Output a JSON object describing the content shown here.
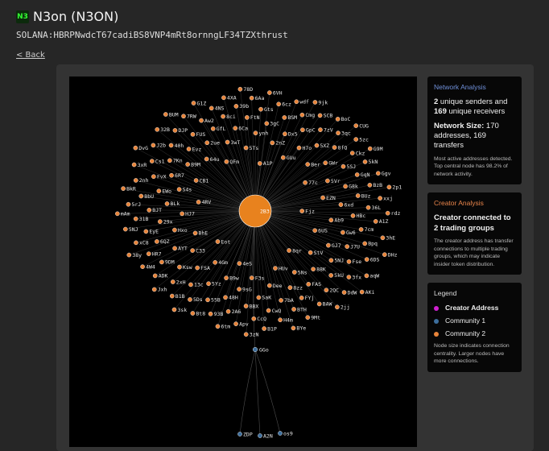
{
  "header": {
    "logo_text": "N3",
    "title": "N3on (N3ON)",
    "address": "SOLANA:HBRPNwdcT67cadiBS8VNP4mRt8ornngLF34TZXthrust",
    "back_label": "< Back"
  },
  "network_analysis": {
    "heading": "Network Analysis",
    "senders": "2",
    "senders_text": " unique senders and ",
    "receivers": "169",
    "receivers_text": " unique receivers",
    "size_label": "Network Size:",
    "size_text": " 170 addresses, 169 transfers",
    "note": "Most active addresses detected. Top central node has 98.2% of network activity."
  },
  "creator_analysis": {
    "heading": "Creator Analysis",
    "headline": "Creator connected to 2 trading groups",
    "note": "The creator address has transfer connections to multiple trading groups, which may indicate insider token distribution."
  },
  "legend": {
    "heading": "Legend",
    "items": [
      {
        "label": "Creator Address",
        "color": "#d020d0"
      },
      {
        "label": "Community 1",
        "color": "#3d6f9e"
      },
      {
        "label": "Community 2",
        "color": "#e8843a"
      }
    ],
    "note": "Node size indicates connection centrality. Larger nodes have more connections."
  },
  "colors": {
    "accent_network": "#6f8fd8",
    "accent_creator": "#e8844a",
    "community2": "#e8843a",
    "community1": "#3d6f9e"
  },
  "graph": {
    "center_label": "2B3",
    "community2_nodes": [
      "Fjz",
      "Eot",
      "A1P",
      "8qr",
      "4RV",
      "77c",
      "4eS",
      "QFm",
      "6US",
      "BhE",
      "GUu",
      "HUv",
      "CB1",
      "EZN",
      "4Gm",
      "5Ts",
      "StV",
      "HJ7",
      "Ber",
      "F3s",
      "64u",
      "Ab9",
      "C33",
      "2nZ",
      "5Ns",
      "S4s",
      "5Vr",
      "B9w",
      "3wT",
      "GJ7",
      "Hxo",
      "H7o",
      "Dee",
      "B9M",
      "6xd",
      "FSA",
      "ynh",
      "88K",
      "BLk",
      "GWr",
      "9sG",
      "2ue",
      "Gw6",
      "AYT",
      "Dx5",
      "8zz",
      "6R7",
      "G8k",
      "5Yz",
      "6Ca",
      "5NJ",
      "29x",
      "5XZ",
      "SaK",
      "Evz",
      "HBc",
      "Ksw",
      "3gC",
      "FAS",
      "EWo",
      "5SJ",
      "48H",
      "GfL",
      "J7U",
      "6QZ",
      "GpC",
      "7bA",
      "7Kn",
      "BUz",
      "13c",
      "FtN",
      "5kU",
      "BJT",
      "8fQ",
      "BBX",
      "FUS",
      "7cm",
      "9DM",
      "BSM",
      "FYj",
      "FvX",
      "GqN",
      "55B",
      "8ci",
      "Fse",
      "EyE",
      "7zV",
      "CwQ",
      "40h",
      "36L",
      "2xH",
      "Gts",
      "2QC",
      "BbU",
      "Ckz",
      "2A6",
      "Aw2",
      "Bpq",
      "HR7",
      "Cmg",
      "BTH",
      "Cs1",
      "BzB",
      "5Ds",
      "39b",
      "3fx",
      "31B",
      "3qc",
      "CcQ",
      "DJP",
      "A1Z",
      "ADK",
      "6cz",
      "BAW",
      "2nh",
      "5kN",
      "93B",
      "4NS",
      "6DS",
      "xC8",
      "SCB",
      "H4m",
      "J2b",
      "xxj",
      "B1B",
      "6Aa",
      "DdW",
      "5rJ",
      "5zc",
      "Apv",
      "7RW",
      "3hE",
      "4W4",
      "wdf",
      "9Mt",
      "3xR",
      "Ggv",
      "Bt8",
      "4XA",
      "aqW",
      "5NJ",
      "BoC",
      "B1P",
      "32B",
      "rdz",
      "Jxh",
      "6VH",
      "2jj",
      "BkR",
      "G9M",
      "6tm",
      "G1Z",
      "DHz",
      "38y",
      "9jk",
      "BYe",
      "DvG",
      "2p1",
      "3sk",
      "78D",
      "AKi",
      "mAm",
      "CUG",
      "3zN",
      "BUM"
    ],
    "community1_hub": "GGo",
    "community1_nodes": [
      "ZDP",
      "A2N",
      "os9"
    ]
  }
}
